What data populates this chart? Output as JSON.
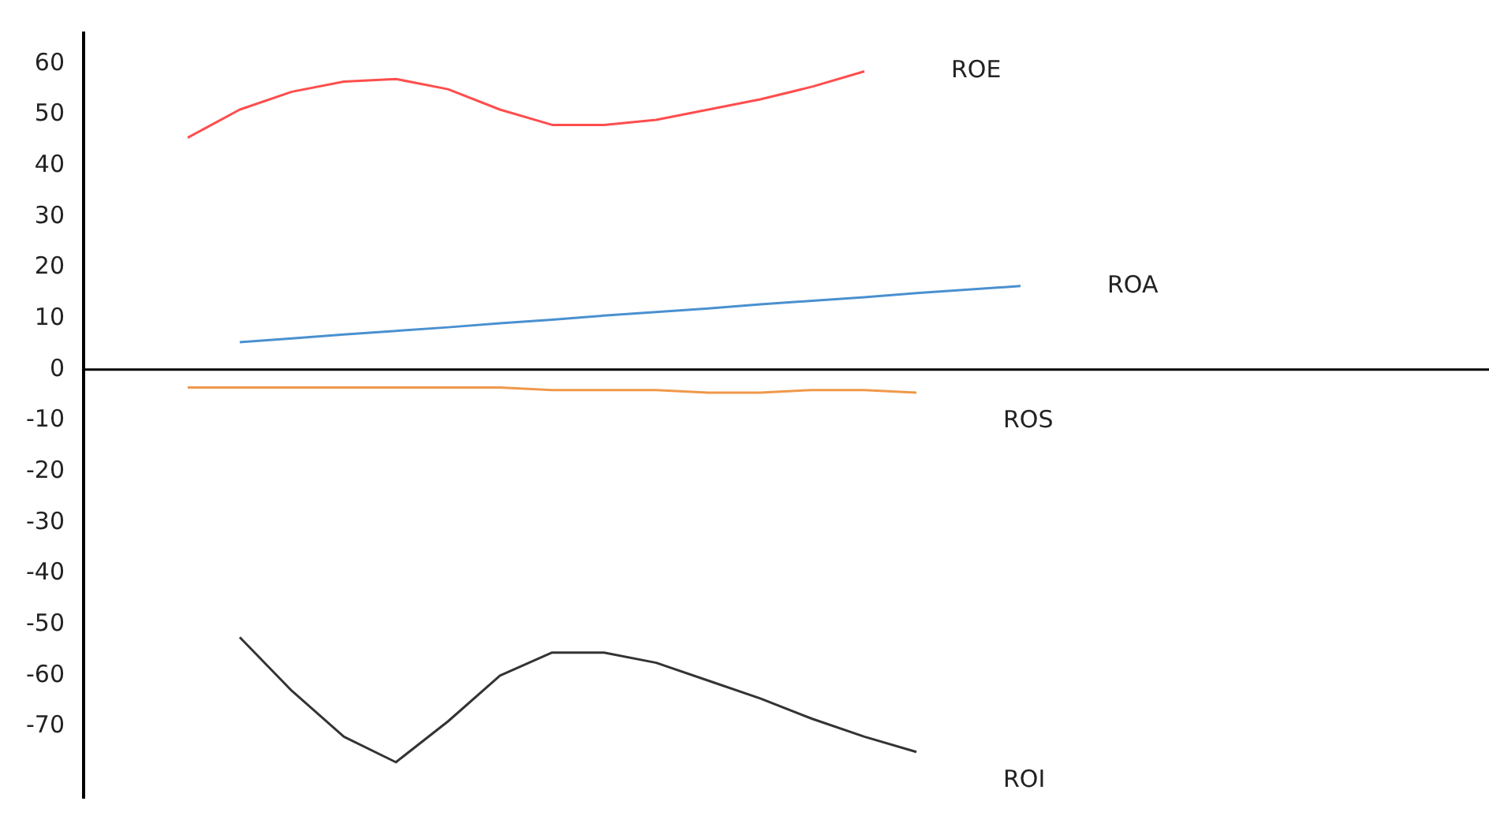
{
  "chart_data": {
    "type": "line",
    "categories": [
      null,
      null,
      null,
      null,
      null,
      null,
      null,
      null,
      null,
      null,
      null,
      null,
      null,
      null,
      null,
      null,
      null,
      null,
      null,
      null,
      null,
      null,
      null,
      null,
      null,
      null,
      null,
      null
    ],
    "ylim": [
      -84,
      66
    ],
    "yticks": [
      60,
      50,
      40,
      30,
      20,
      10,
      0,
      -10,
      -20,
      -30,
      -40,
      -50,
      -60,
      -70
    ],
    "tick_labels": "y",
    "grid": false,
    "legend": false,
    "marker": "none",
    "line_style": "solid",
    "ref_lines": [
      {
        "axis": "y",
        "value": 0,
        "color": "#000000"
      }
    ],
    "series": [
      {
        "name": "ROE",
        "color": "#ff4d4d",
        "values": [
          null,
          null,
          45.5,
          51,
          54.5,
          56.5,
          57,
          55,
          51,
          48,
          48,
          49,
          51,
          53,
          55.5,
          58.5,
          null,
          null,
          null,
          null,
          null,
          null,
          null,
          null,
          null,
          null,
          null,
          null
        ]
      },
      {
        "name": "ROA",
        "color": "#4a90d0",
        "values": [
          null,
          null,
          null,
          5.4,
          6.1,
          6.9,
          7.6,
          8.3,
          9.1,
          9.8,
          10.6,
          11.3,
          12,
          12.8,
          13.5,
          14.2,
          15,
          15.7,
          16.4,
          null,
          null,
          null,
          null,
          null,
          null,
          null,
          null,
          null
        ]
      },
      {
        "name": "ROS",
        "color": "#f0984a",
        "values": [
          null,
          null,
          -3.5,
          -3.5,
          -3.5,
          -3.5,
          -3.5,
          -3.5,
          -3.5,
          -4,
          -4,
          -4,
          -4.5,
          -4.5,
          -4,
          -4,
          -4.5,
          null,
          null,
          null,
          null,
          null,
          null,
          null,
          null,
          null,
          null,
          null
        ]
      },
      {
        "name": "ROI",
        "color": "#333333",
        "values": [
          null,
          null,
          null,
          -52.5,
          -63,
          -72,
          -77,
          -69,
          -60,
          -55.5,
          -55.5,
          -57.5,
          -61,
          -64.5,
          -68.5,
          -72,
          -75,
          null,
          null,
          null,
          null,
          null,
          null,
          null,
          null,
          null,
          null,
          null
        ]
      }
    ]
  }
}
